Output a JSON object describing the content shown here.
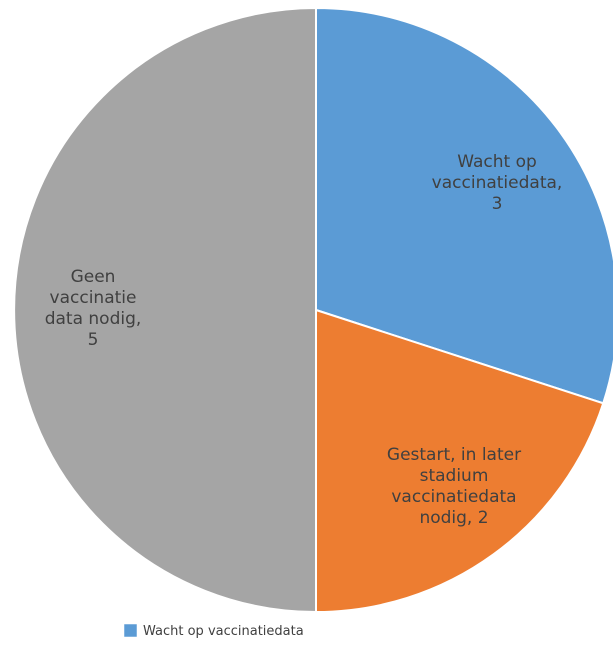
{
  "chart_data": {
    "type": "pie",
    "title": "",
    "slices": [
      {
        "label": "Wacht op vaccinatiedata",
        "value": 3,
        "color": "#5b9bd5",
        "label_lines": [
          "Wacht op",
          "vaccinatiedata,",
          "3"
        ]
      },
      {
        "label": "Gestart, in later stadium vaccinatiedata nodig",
        "value": 2,
        "color": "#ed7d31",
        "label_lines": [
          "Gestart, in later",
          "stadium",
          "vaccinatiedata",
          "nodig, 2"
        ]
      },
      {
        "label": "Geen vaccinatie data nodig",
        "value": 5,
        "color": "#a5a5a5",
        "label_lines": [
          "Geen",
          "vaccinatie",
          "data nodig,",
          "5"
        ]
      }
    ],
    "legend": {
      "placement": "bottom-left",
      "entries": [
        {
          "label": "Wacht op vaccinatiedata",
          "color": "#5b9bd5"
        }
      ]
    }
  }
}
